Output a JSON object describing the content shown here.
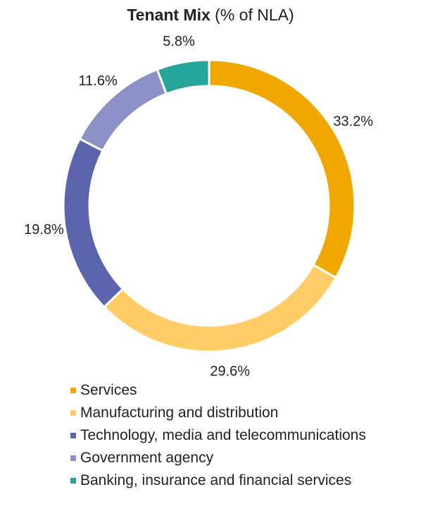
{
  "chart_data": {
    "type": "pie",
    "title_bold": "Tenant Mix",
    "title_rest": "(% of NLA)",
    "categories": [
      "Services",
      "Manufacturing and distribution",
      "Technology, media and telecommunications",
      "Government agency",
      "Banking, insurance and financial services"
    ],
    "values": [
      33.2,
      29.6,
      19.8,
      11.6,
      5.8
    ],
    "labels": [
      "33.2%",
      "29.6%",
      "19.8%",
      "11.6%",
      "5.8%"
    ],
    "colors": [
      "#F0A800",
      "#FFCC66",
      "#5B64AD",
      "#8C91C8",
      "#26A69A"
    ],
    "hole": true,
    "legend_position": "bottom"
  }
}
